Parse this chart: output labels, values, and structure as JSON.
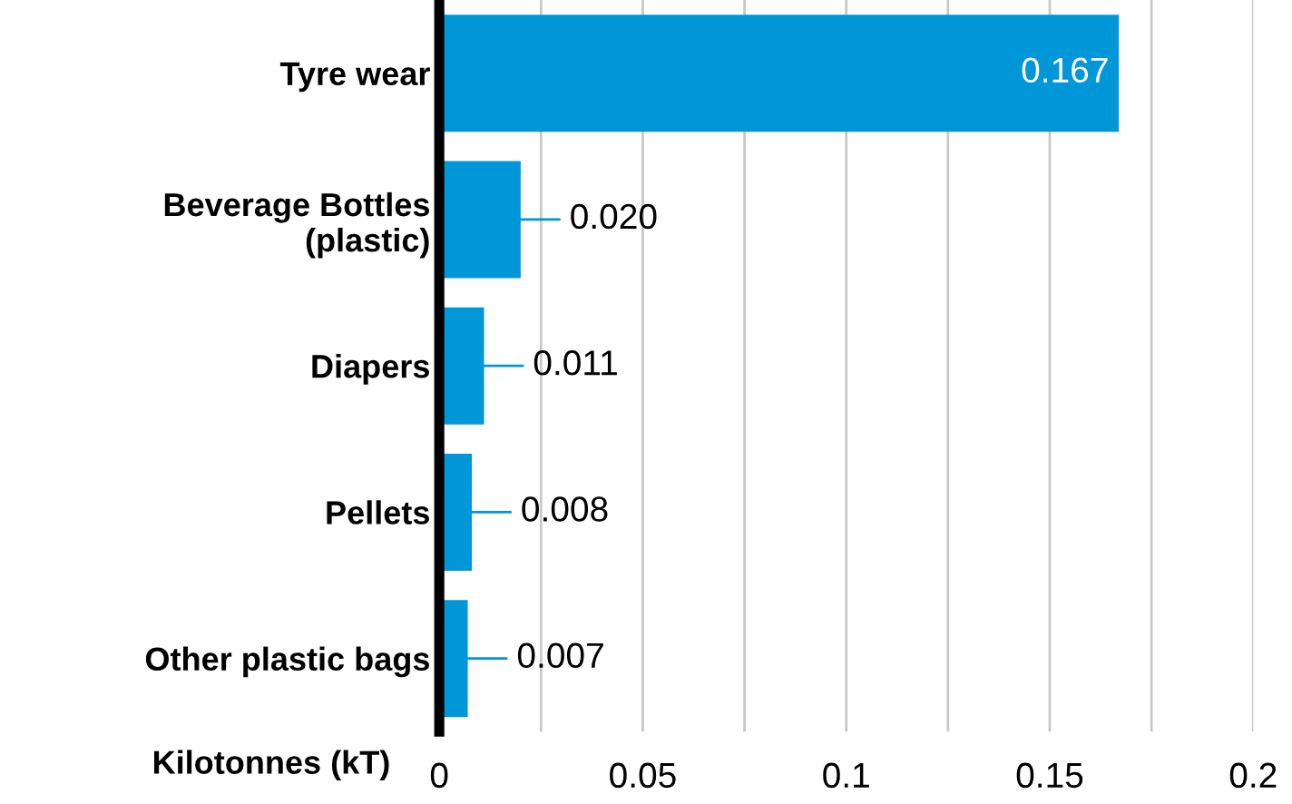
{
  "chart_data": {
    "type": "bar",
    "orientation": "horizontal",
    "xlabel": "Kilotonnes (kT)",
    "categories": [
      "Tyre wear",
      "Beverage Bottles\n(plastic)",
      "Diapers",
      "Pellets",
      "Other plastic bags"
    ],
    "values": [
      0.167,
      0.02,
      0.011,
      0.008,
      0.007
    ],
    "color": "#0097d9",
    "value_labels": [
      "0.167",
      "0.020",
      "0.011",
      "0.008",
      "0.007"
    ],
    "xlim": [
      0,
      0.2
    ],
    "xticks": [
      0,
      {
        "value": 0.025,
        "label": null
      },
      0.05,
      {
        "value": 0.075,
        "label": null
      },
      0.1,
      {
        "value": 0.125,
        "label": null
      },
      0.15,
      {
        "value": 0.175,
        "label": null
      },
      0.2
    ],
    "grid": "x"
  }
}
